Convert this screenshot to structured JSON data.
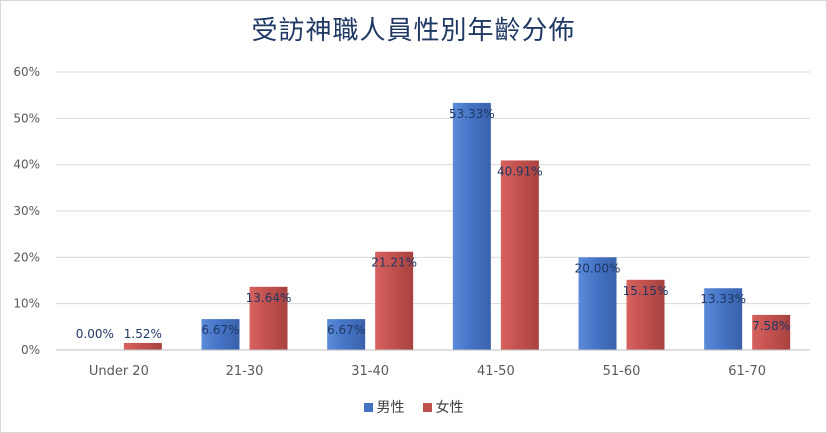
{
  "chart_data": {
    "type": "bar",
    "title": "受訪神職人員性別年齡分佈",
    "categories": [
      "Under 20",
      "21-30",
      "31-40",
      "41-50",
      "51-60",
      "61-70"
    ],
    "series": [
      {
        "name": "男性",
        "color": "#4472c4",
        "values": [
          0.0,
          6.67,
          6.67,
          53.33,
          20.0,
          13.33
        ],
        "labels": [
          "0.00%",
          "6.67%",
          "6.67%",
          "53.33%",
          "20.00%",
          "13.33%"
        ]
      },
      {
        "name": "女性",
        "color": "#c0504d",
        "values": [
          1.52,
          13.64,
          21.21,
          40.91,
          15.15,
          7.58
        ],
        "labels": [
          "1.52%",
          "13.64%",
          "21.21%",
          "40.91%",
          "15.15%",
          "7.58%"
        ]
      }
    ],
    "yticks": [
      "0%",
      "10%",
      "20%",
      "30%",
      "40%",
      "50%",
      "60%"
    ],
    "ylim": [
      0,
      60
    ],
    "grid": true,
    "legend_position": "bottom"
  }
}
